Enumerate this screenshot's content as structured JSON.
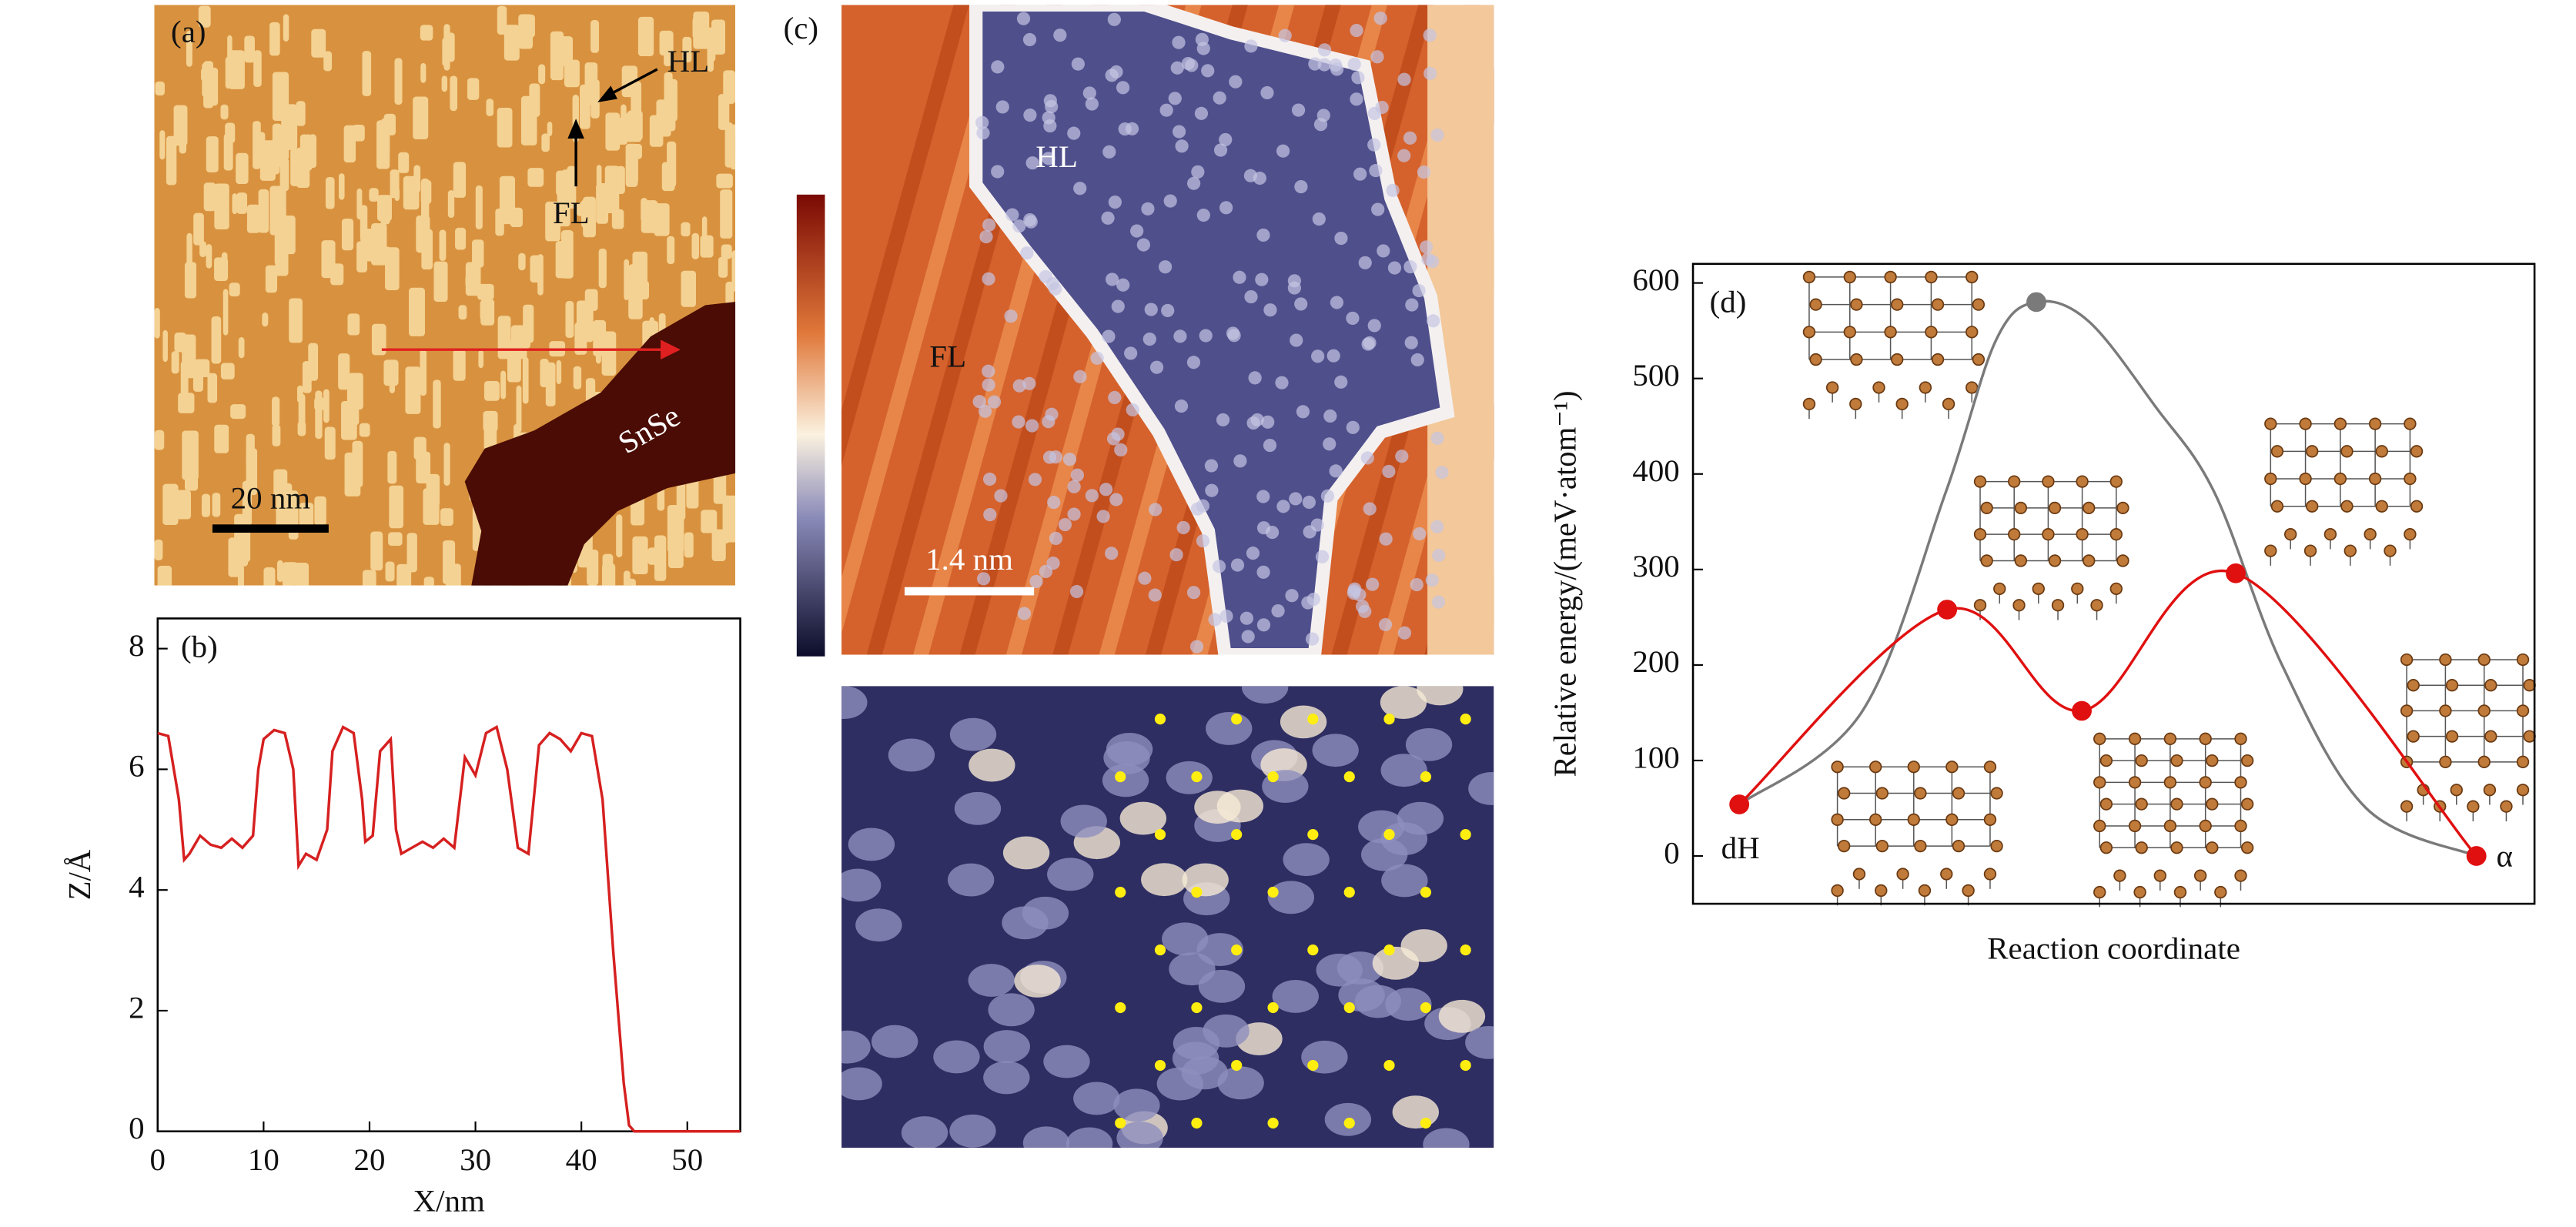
{
  "panels": {
    "a": {
      "label": "(a)",
      "annotations": [
        "HL",
        "FL",
        "SnSe"
      ],
      "scale_bar": "20 nm"
    },
    "c": {
      "label": "(c)",
      "annotations": [
        "HL",
        "FL"
      ],
      "scale_bar": "1.4 nm"
    }
  },
  "chart_data": [
    {
      "type": "line",
      "label": "(b)",
      "xlabel": "X/nm",
      "ylabel": "Z/Å",
      "x": [
        0,
        1,
        2,
        2.5,
        3,
        4,
        5,
        6,
        7,
        8,
        9,
        9.5,
        10,
        11,
        12,
        12.8,
        13.3,
        14,
        15,
        16,
        16.5,
        17.5,
        18.5,
        19.3,
        19.6,
        20.3,
        21,
        22,
        22.5,
        23,
        24,
        25,
        26,
        27,
        28,
        29,
        30,
        31,
        32,
        33,
        34,
        35,
        36,
        37,
        38,
        39,
        40,
        41,
        42,
        43,
        44,
        44.5,
        45,
        50,
        55
      ],
      "series": [
        {
          "color": "#d62020",
          "values": [
            6.6,
            6.55,
            5.5,
            4.5,
            4.6,
            4.9,
            4.75,
            4.7,
            4.85,
            4.7,
            4.9,
            6.0,
            6.5,
            6.65,
            6.6,
            6.0,
            4.4,
            4.6,
            4.5,
            5.0,
            6.3,
            6.7,
            6.6,
            5.5,
            4.8,
            4.9,
            6.3,
            6.5,
            5.0,
            4.6,
            4.7,
            4.8,
            4.7,
            4.85,
            4.7,
            6.2,
            5.9,
            6.6,
            6.7,
            6.0,
            4.7,
            4.6,
            6.4,
            6.6,
            6.5,
            6.3,
            6.6,
            6.55,
            5.5,
            3.0,
            0.8,
            0.1,
            0,
            0,
            0
          ]
        }
      ],
      "xlim": [
        0,
        55
      ],
      "ylim": [
        0,
        8.5
      ],
      "xticks": [
        0,
        10,
        20,
        30,
        40,
        50
      ],
      "yticks": [
        0,
        2,
        4,
        6,
        8
      ]
    },
    {
      "type": "line",
      "label": "(d)",
      "xlabel": "Reaction coordinate",
      "ylabel": "Relative energy/(meV·atom⁻¹)",
      "annotations": [
        "dH",
        "α"
      ],
      "series": [
        {
          "color": "#7a7a7a",
          "line": true,
          "markers": false,
          "x": [
            0.055,
            0.2,
            0.3,
            0.36,
            0.408,
            0.47,
            0.55,
            0.62,
            0.7,
            0.8,
            0.931
          ],
          "values": [
            54,
            150,
            380,
            540,
            580,
            560,
            470,
            380,
            200,
            50,
            0
          ]
        },
        {
          "color": "#7a7a7a",
          "line": false,
          "markers": true,
          "x": [
            0.408
          ],
          "values": [
            580
          ]
        },
        {
          "color": "#e01010",
          "line": true,
          "markers": true,
          "x": [
            0.055,
            0.302,
            0.462,
            0.645,
            0.931
          ],
          "values": [
            54,
            258,
            152,
            296,
            0
          ]
        }
      ],
      "xlim": [
        0,
        1
      ],
      "ylim": [
        -50,
        620
      ],
      "yticks": [
        0,
        100,
        200,
        300,
        400,
        500,
        600
      ]
    }
  ]
}
